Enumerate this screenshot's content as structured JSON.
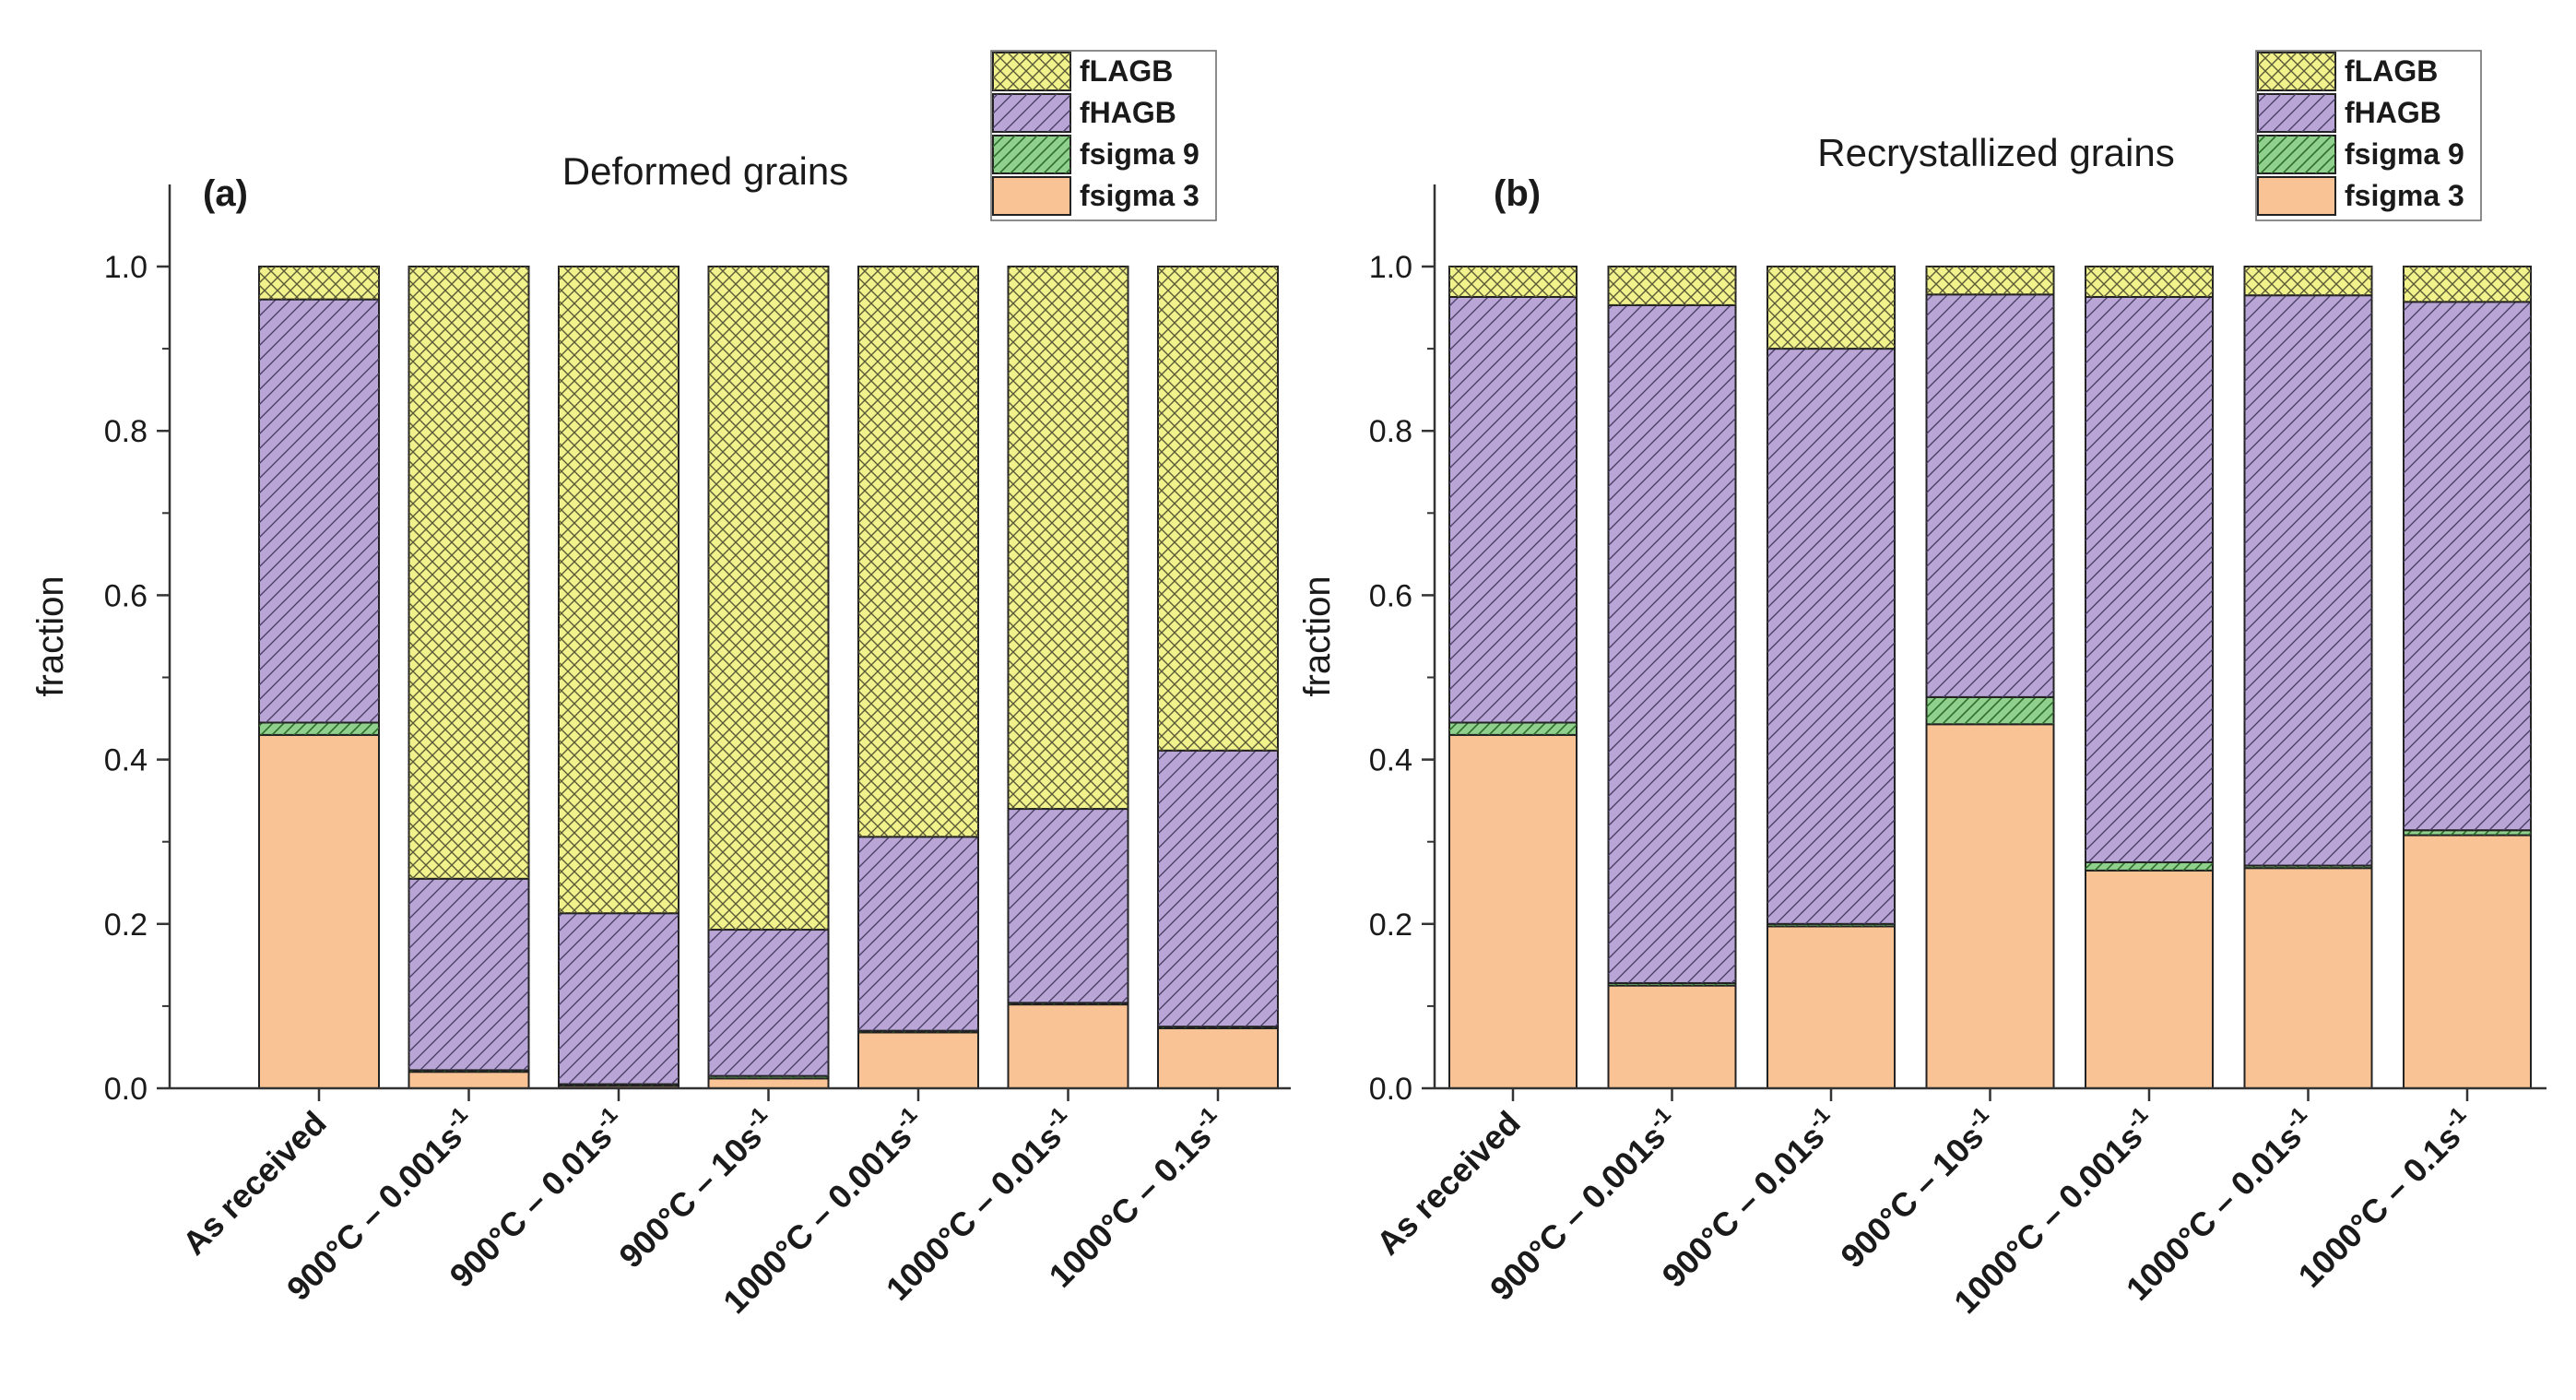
{
  "chart_data": [
    {
      "type": "bar",
      "stacked": true,
      "panel_label": "(a)",
      "title": "Deformed grains",
      "xlabel": "",
      "ylabel": "fraction",
      "ylim": [
        0,
        1.1
      ],
      "yticks": [
        "0.0",
        "0.2",
        "0.4",
        "0.6",
        "0.8",
        "1.0"
      ],
      "legend_position": "top-right",
      "categories": [
        [
          "As received",
          ""
        ],
        [
          "900°C – 0.001s",
          "-1"
        ],
        [
          "900°C – 0.01s",
          "-1"
        ],
        [
          "900°C – 10s",
          "-1"
        ],
        [
          "1000°C – 0.001s",
          "-1"
        ],
        [
          "1000°C – 0.01s",
          "-1"
        ],
        [
          "1000°C – 0.1s",
          "-1"
        ]
      ],
      "series": [
        {
          "name": "fsigma 3",
          "values": [
            0.43,
            0.02,
            0.003,
            0.012,
            0.068,
            0.102,
            0.073
          ]
        },
        {
          "name": "fsigma 9",
          "values": [
            0.015,
            0.002,
            0.002,
            0.003,
            0.002,
            0.002,
            0.002
          ]
        },
        {
          "name": "fHAGB",
          "values": [
            0.515,
            0.233,
            0.208,
            0.178,
            0.236,
            0.236,
            0.336
          ]
        },
        {
          "name": "fLAGB",
          "values": [
            0.04,
            0.745,
            0.787,
            0.807,
            0.694,
            0.66,
            0.589
          ]
        }
      ]
    },
    {
      "type": "bar",
      "stacked": true,
      "panel_label": "(b)",
      "title": "Recrystallized grains",
      "xlabel": "",
      "ylabel": "fraction",
      "ylim": [
        0,
        1.1
      ],
      "yticks": [
        "0.0",
        "0.2",
        "0.4",
        "0.6",
        "0.8",
        "1.0"
      ],
      "legend_position": "top-right",
      "categories": [
        [
          "As received",
          ""
        ],
        [
          "900°C – 0.001s",
          "-1"
        ],
        [
          "900°C – 0.01s",
          "-1"
        ],
        [
          "900°C – 10s",
          "-1"
        ],
        [
          "1000°C – 0.001s",
          "-1"
        ],
        [
          "1000°C – 0.01s",
          "-1"
        ],
        [
          "1000°C – 0.1s",
          "-1"
        ]
      ],
      "series": [
        {
          "name": "fsigma 3",
          "values": [
            0.43,
            0.125,
            0.197,
            0.443,
            0.265,
            0.268,
            0.308
          ]
        },
        {
          "name": "fsigma 9",
          "values": [
            0.015,
            0.003,
            0.003,
            0.033,
            0.01,
            0.003,
            0.006
          ]
        },
        {
          "name": "fHAGB",
          "values": [
            0.518,
            0.825,
            0.7,
            0.49,
            0.688,
            0.694,
            0.643
          ]
        },
        {
          "name": "fLAGB",
          "values": [
            0.037,
            0.047,
            0.1,
            0.034,
            0.037,
            0.035,
            0.043
          ]
        }
      ]
    }
  ],
  "legend": {
    "items": [
      {
        "label": "fLAGB",
        "series": "fLAGB"
      },
      {
        "label": "fHAGB",
        "series": "fHAGB"
      },
      {
        "label": "fsigma 9",
        "series": "fsigma 9"
      },
      {
        "label": "fsigma 3",
        "series": "fsigma 3"
      }
    ]
  },
  "colors": {
    "fLAGB": "#f2f28c",
    "fHAGB": "#b9a6d6",
    "fsigma 9": "#8fd18c",
    "fsigma 3": "#f9c395",
    "axis": "#333333"
  }
}
